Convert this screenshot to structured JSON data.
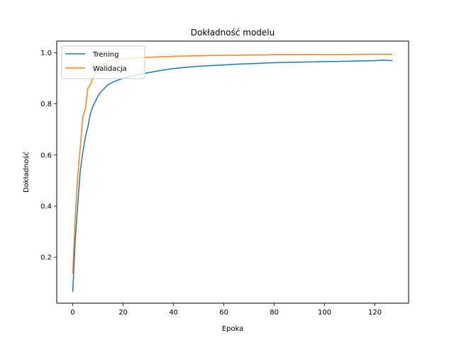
{
  "chart_data": {
    "type": "line",
    "title": "Dokładność modelu",
    "xlabel": "Epoka",
    "ylabel": "Dokładność",
    "xlim": [
      -6.35,
      133.35
    ],
    "ylim": [
      0.0205,
      1.0455
    ],
    "xticks": [
      0,
      20,
      40,
      60,
      80,
      100,
      120
    ],
    "yticks": [
      0.2,
      0.4,
      0.6,
      0.8,
      1.0
    ],
    "xtick_labels": [
      "0",
      "20",
      "40",
      "60",
      "80",
      "100",
      "120"
    ],
    "ytick_labels": [
      "0.2",
      "0.4",
      "0.6",
      "0.8",
      "1.0"
    ],
    "grid": false,
    "legend_position": "top-left",
    "series": [
      {
        "name": "Trening",
        "color": "#1f77b4",
        "x": [
          0,
          1,
          2,
          3,
          4,
          5,
          6,
          7,
          8,
          9,
          10,
          11,
          12,
          13,
          14,
          15,
          16,
          18,
          20,
          22,
          25,
          28,
          30,
          33,
          35,
          38,
          40,
          45,
          50,
          55,
          60,
          65,
          70,
          75,
          80,
          85,
          90,
          95,
          100,
          105,
          110,
          115,
          120,
          123,
          125,
          127
        ],
        "y": [
          0.065,
          0.27,
          0.41,
          0.54,
          0.61,
          0.67,
          0.71,
          0.76,
          0.79,
          0.81,
          0.83,
          0.845,
          0.855,
          0.865,
          0.875,
          0.88,
          0.885,
          0.893,
          0.9,
          0.905,
          0.912,
          0.918,
          0.922,
          0.927,
          0.931,
          0.935,
          0.938,
          0.943,
          0.947,
          0.95,
          0.952,
          0.955,
          0.957,
          0.959,
          0.961,
          0.962,
          0.963,
          0.964,
          0.965,
          0.966,
          0.967,
          0.968,
          0.969,
          0.971,
          0.97,
          0.969
        ]
      },
      {
        "name": "Walidacja",
        "color": "#ff7f0e",
        "x": [
          0,
          1,
          2,
          3,
          4,
          5,
          6,
          7,
          8,
          9,
          10,
          11,
          12,
          13,
          14,
          15,
          17,
          19,
          21,
          23,
          25,
          28,
          30,
          33,
          35,
          38,
          40,
          45,
          50,
          55,
          60,
          65,
          70,
          75,
          80,
          85,
          90,
          95,
          100,
          105,
          110,
          115,
          120,
          125,
          127
        ],
        "y": [
          0.135,
          0.36,
          0.52,
          0.63,
          0.75,
          0.78,
          0.86,
          0.875,
          0.9,
          0.92,
          0.935,
          0.945,
          0.955,
          0.96,
          0.965,
          0.97,
          0.973,
          0.975,
          0.977,
          0.978,
          0.98,
          0.981,
          0.982,
          0.983,
          0.984,
          0.985,
          0.986,
          0.987,
          0.988,
          0.989,
          0.99,
          0.99,
          0.991,
          0.991,
          0.992,
          0.992,
          0.992,
          0.993,
          0.993,
          0.993,
          0.993,
          0.994,
          0.994,
          0.994,
          0.994
        ]
      }
    ]
  }
}
